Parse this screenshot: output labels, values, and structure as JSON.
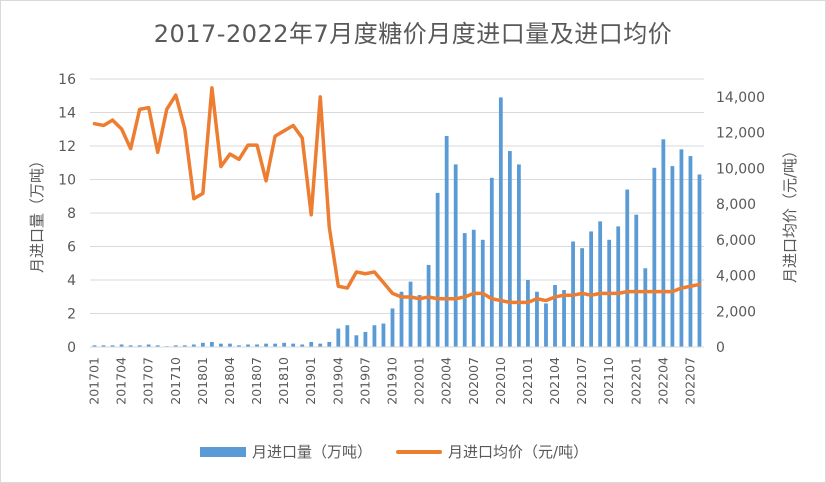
{
  "chart_data": {
    "type": "bar",
    "title": "2017-2022年7月度糖价月度进口量及进口均价",
    "ylabel": "月进口量（万吨）",
    "y2label": "月进口均价（元/吨）",
    "ylim": [
      0,
      16
    ],
    "y2lim": [
      0,
      15000
    ],
    "yticks": [
      "0",
      "2",
      "4",
      "6",
      "8",
      "10",
      "12",
      "14",
      "16"
    ],
    "y2ticks": [
      "0",
      "2,000",
      "4,000",
      "6,000",
      "8,000",
      "10,000",
      "12,000",
      "14,000"
    ],
    "legend_position": "bottom",
    "categories": [
      "201701",
      "201702",
      "201703",
      "201704",
      "201705",
      "201706",
      "201707",
      "201708",
      "201709",
      "201710",
      "201711",
      "201712",
      "201801",
      "201802",
      "201803",
      "201804",
      "201805",
      "201806",
      "201807",
      "201808",
      "201809",
      "201810",
      "201811",
      "201812",
      "201901",
      "201902",
      "201903",
      "201904",
      "201905",
      "201906",
      "201907",
      "201908",
      "201909",
      "201910",
      "201911",
      "201912",
      "202001",
      "202002",
      "202003",
      "202004",
      "202005",
      "202006",
      "202007",
      "202008",
      "202009",
      "202010",
      "202011",
      "202012",
      "202101",
      "202102",
      "202103",
      "202104",
      "202105",
      "202106",
      "202107",
      "202108",
      "202109",
      "202110",
      "202111",
      "202112",
      "202201",
      "202202",
      "202203",
      "202204",
      "202205",
      "202206",
      "202207",
      "202208"
    ],
    "xtick_labels": [
      "201701",
      "201704",
      "201707",
      "201710",
      "201801",
      "201804",
      "201807",
      "201810",
      "201901",
      "201904",
      "201907",
      "201910",
      "202001",
      "202004",
      "202007",
      "202010",
      "202101",
      "202104",
      "202107",
      "202110",
      "202201",
      "202204",
      "202207"
    ],
    "series": [
      {
        "name": "月进口量（万吨）",
        "type": "bar",
        "axis": "left",
        "color": "#5b9bd5",
        "values": [
          0.1,
          0.1,
          0.1,
          0.15,
          0.1,
          0.1,
          0.15,
          0.1,
          0.05,
          0.1,
          0.1,
          0.15,
          0.25,
          0.3,
          0.2,
          0.2,
          0.1,
          0.15,
          0.15,
          0.2,
          0.2,
          0.25,
          0.2,
          0.15,
          0.3,
          0.2,
          0.3,
          1.1,
          1.3,
          0.7,
          0.9,
          1.3,
          1.4,
          2.3,
          3.3,
          3.9,
          3.1,
          4.9,
          9.2,
          12.6,
          10.9,
          6.8,
          7.0,
          6.4,
          10.1,
          14.9,
          11.7,
          10.9,
          4.0,
          3.3,
          2.6,
          3.7,
          3.4,
          6.3,
          5.9,
          6.9,
          7.5,
          6.4,
          7.2,
          9.4,
          7.9,
          4.7,
          10.7,
          12.4,
          10.8,
          11.8,
          11.4,
          10.3
        ]
      },
      {
        "name": "月进口均价（元/吨）",
        "type": "line",
        "axis": "right",
        "color": "#ed7d31",
        "values": [
          12500,
          12400,
          12700,
          12200,
          11100,
          13300,
          13400,
          10900,
          13300,
          14100,
          12200,
          8300,
          8600,
          14500,
          10100,
          10800,
          10500,
          11300,
          11300,
          9300,
          11800,
          12100,
          12400,
          11700,
          7400,
          14000,
          6700,
          3400,
          3300,
          4200,
          4100,
          4200,
          3600,
          3000,
          2800,
          2800,
          2700,
          2800,
          2700,
          2700,
          2700,
          2800,
          3000,
          3000,
          2700,
          2600,
          2500,
          2500,
          2500,
          2700,
          2600,
          2800,
          2900,
          2900,
          3000,
          2900,
          3000,
          3000,
          3000,
          3100,
          3100,
          3100,
          3100,
          3100,
          3100,
          3300,
          3400,
          3500
        ]
      }
    ]
  }
}
